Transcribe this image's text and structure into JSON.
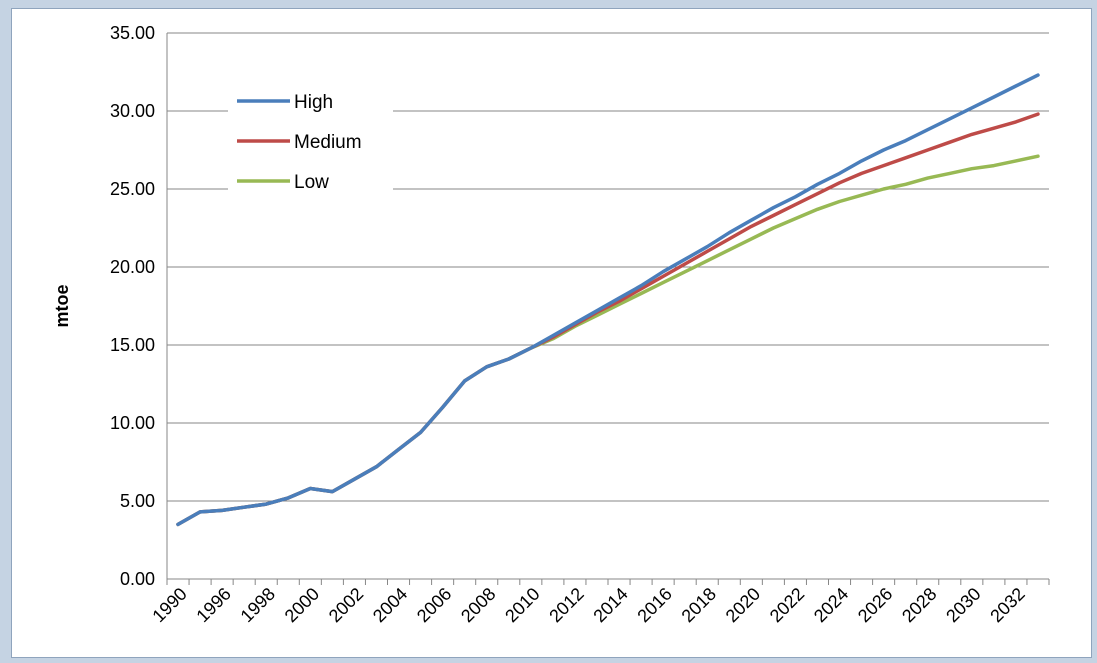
{
  "chart_data": {
    "type": "line",
    "ylabel": "mtoe",
    "xlabel": "",
    "ylim": [
      0,
      35
    ],
    "yticks": [
      "0.00",
      "5.00",
      "10.00",
      "15.00",
      "20.00",
      "25.00",
      "30.00",
      "35.00"
    ],
    "x_tick_labels": [
      "1990",
      "1996",
      "1998",
      "2000",
      "2002",
      "2004",
      "2006",
      "2008",
      "2010",
      "2012",
      "2014",
      "2016",
      "2018",
      "2020",
      "2022",
      "2024",
      "2026",
      "2028",
      "2030",
      "2032"
    ],
    "x": [
      "1990",
      "1995",
      "1996",
      "1997",
      "1998",
      "1999",
      "2000",
      "2001",
      "2002",
      "2003",
      "2004",
      "2005",
      "2006",
      "2007",
      "2008",
      "2009",
      "2010",
      "2011",
      "2012",
      "2013",
      "2014",
      "2015",
      "2016",
      "2017",
      "2018",
      "2019",
      "2020",
      "2021",
      "2022",
      "2023",
      "2024",
      "2025",
      "2026",
      "2027",
      "2028",
      "2029",
      "2030",
      "2031",
      "2032",
      "2033"
    ],
    "grid": "horizontal",
    "legend_position": "top-left",
    "series": [
      {
        "name": "High",
        "color": "#4a7ebb",
        "values": [
          3.5,
          4.3,
          4.4,
          4.6,
          4.8,
          5.2,
          5.8,
          5.6,
          6.4,
          7.2,
          8.3,
          9.4,
          11.0,
          12.7,
          13.6,
          14.1,
          14.8,
          15.6,
          16.4,
          17.2,
          18.0,
          18.8,
          19.7,
          20.5,
          21.3,
          22.2,
          23.0,
          23.8,
          24.5,
          25.3,
          26.0,
          26.8,
          27.5,
          28.1,
          28.8,
          29.5,
          30.2,
          30.9,
          31.6,
          32.3
        ]
      },
      {
        "name": "Medium",
        "color": "#be4b48",
        "values": [
          3.5,
          4.3,
          4.4,
          4.6,
          4.8,
          5.2,
          5.8,
          5.6,
          6.4,
          7.2,
          8.3,
          9.4,
          11.0,
          12.7,
          13.6,
          14.1,
          14.8,
          15.5,
          16.3,
          17.1,
          17.8,
          18.6,
          19.4,
          20.2,
          21.0,
          21.8,
          22.6,
          23.3,
          24.0,
          24.7,
          25.4,
          26.0,
          26.5,
          27.0,
          27.5,
          28.0,
          28.5,
          28.9,
          29.3,
          29.8
        ]
      },
      {
        "name": "Low",
        "color": "#98b954",
        "values": [
          3.5,
          4.3,
          4.4,
          4.6,
          4.8,
          5.2,
          5.8,
          5.6,
          6.4,
          7.2,
          8.3,
          9.4,
          11.0,
          12.7,
          13.6,
          14.1,
          14.8,
          15.4,
          16.2,
          16.9,
          17.6,
          18.3,
          19.0,
          19.7,
          20.4,
          21.1,
          21.8,
          22.5,
          23.1,
          23.7,
          24.2,
          24.6,
          25.0,
          25.3,
          25.7,
          26.0,
          26.3,
          26.5,
          26.8,
          27.1
        ]
      }
    ]
  }
}
